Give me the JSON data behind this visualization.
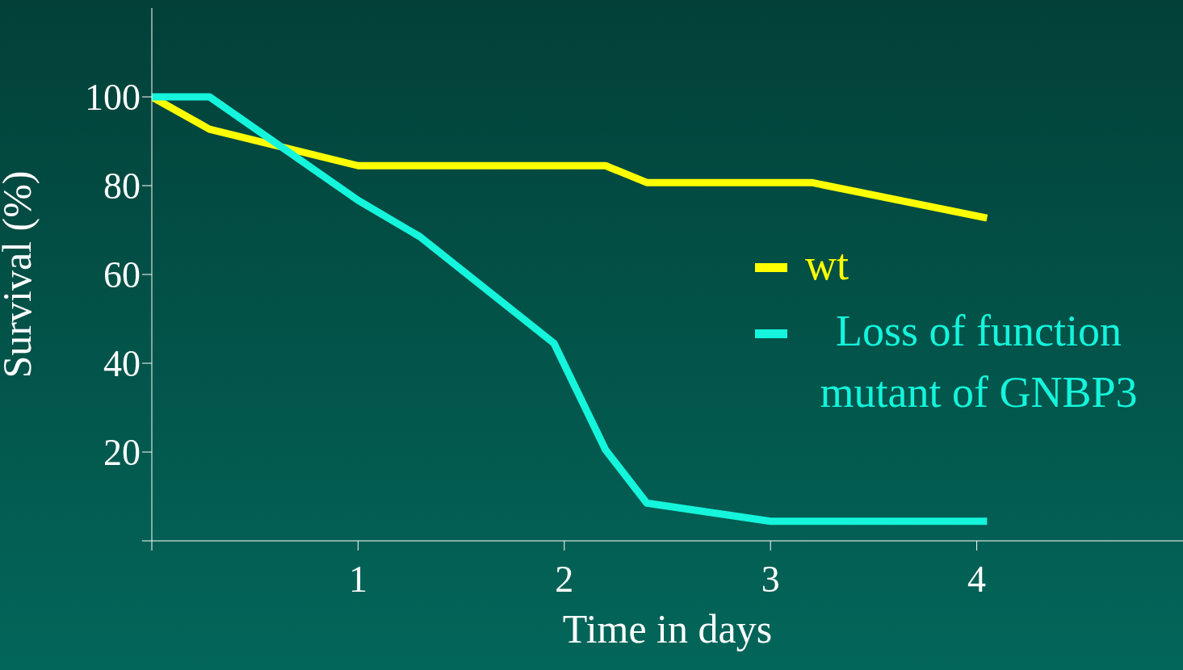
{
  "chart_data": {
    "type": "line",
    "xlabel": "Time in days",
    "ylabel": "Survival (%)",
    "xlim": [
      0,
      5
    ],
    "xticks": [
      {
        "value": 0,
        "label": null
      },
      1,
      2,
      3,
      4
    ],
    "ylim": [
      0,
      120
    ],
    "yticks": [
      {
        "value": 0,
        "label": null
      },
      20,
      40,
      60,
      80,
      100
    ],
    "legend": "right",
    "series": [
      {
        "name": "wt",
        "color": "#ffff00",
        "x": [
          0,
          0.28,
          1.0,
          2.2,
          2.4,
          3.2,
          4.05
        ],
        "values": [
          100,
          92.7,
          84.5,
          84.5,
          80.7,
          80.7,
          72.7
        ]
      },
      {
        "name": "Loss of function mutant of GNBP3",
        "color": "#14f5dc",
        "x": [
          0,
          0.28,
          1.0,
          1.3,
          1.95,
          2.2,
          2.4,
          3.0,
          4.05
        ],
        "values": [
          100,
          100,
          76.7,
          68.5,
          44.5,
          20.5,
          8.5,
          4.4,
          4.4
        ]
      }
    ]
  }
}
